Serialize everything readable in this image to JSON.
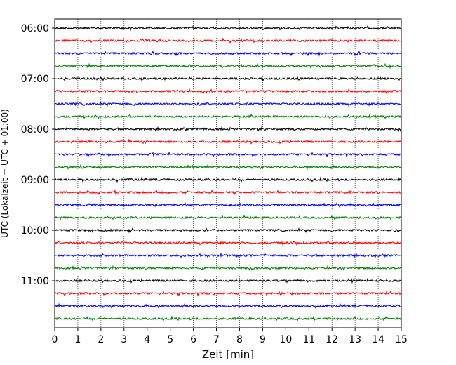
{
  "chart_data": {
    "type": "line",
    "title": "",
    "xlabel": "Zeit  [min]",
    "ylabel": "UTC (Lokalzeit = UTC + 01:00)",
    "xlim": [
      0,
      15
    ],
    "x_ticks": [
      0,
      1,
      2,
      3,
      4,
      5,
      6,
      7,
      8,
      9,
      10,
      11,
      12,
      13,
      14,
      15
    ],
    "y_tick_labels": [
      "06:00",
      "07:00",
      "08:00",
      "09:00",
      "10:00",
      "11:00"
    ],
    "trace_interval_minutes": 15,
    "first_trace_start": "06:00",
    "trace_starts": [
      "06:00",
      "06:15",
      "06:30",
      "06:45",
      "07:00",
      "07:15",
      "07:30",
      "07:45",
      "08:00",
      "08:15",
      "08:30",
      "08:45",
      "09:00",
      "09:15",
      "09:30",
      "09:45",
      "10:00",
      "10:15",
      "10:30",
      "10:45",
      "11:00",
      "11:15",
      "11:30",
      "11:45"
    ],
    "trace_color_cycle": [
      "#000000",
      "#ff0000",
      "#0000ff",
      "#008000"
    ],
    "trace_kind": "seismogram noise (helicorder)",
    "grid": "vertical dotted at each minute",
    "legend": "none"
  }
}
